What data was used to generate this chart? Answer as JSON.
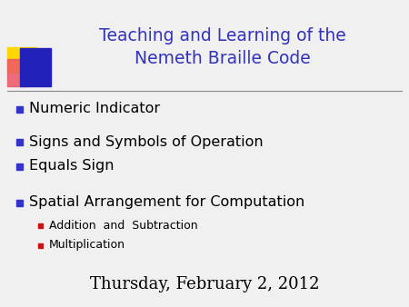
{
  "title_line1": "Teaching and Learning of the",
  "title_line2": "Nemeth Braille Code",
  "title_color": "#3333BB",
  "background_color": "#F0F0F0",
  "bullet_color": "#3333CC",
  "sub_bullet_color": "#CC1111",
  "main_bullets": [
    "Numeric Indicator",
    "Signs and Symbols of Operation",
    "Equals Sign",
    "Spatial Arrangement for Computation"
  ],
  "sub_bullets": [
    "Addition  and  Subtraction",
    "Multiplication"
  ],
  "footer": "Thursday, February 2, 2012",
  "footer_color": "#000000",
  "title_fontsize": 13.5,
  "bullet_fontsize": 11.5,
  "sub_bullet_fontsize": 9,
  "footer_fontsize": 13,
  "logo_yellow": "#FFD700",
  "logo_blue": "#2222BB",
  "logo_red": "#EE5566",
  "separator_color": "#888888",
  "separator_linewidth": 0.8
}
